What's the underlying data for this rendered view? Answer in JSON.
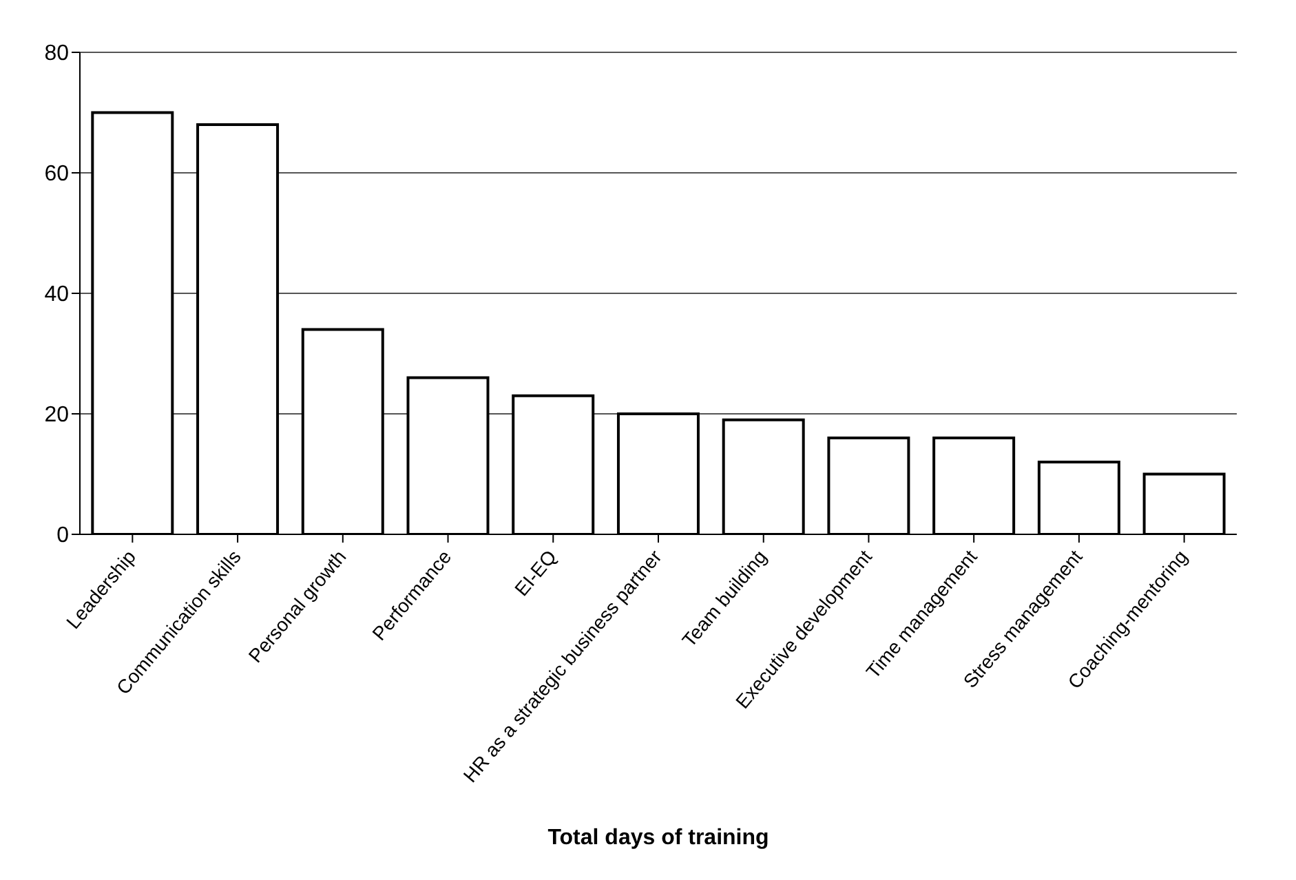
{
  "chart_data": {
    "type": "bar",
    "xlabel": "Total days of training",
    "categories": [
      "Leadership",
      "Communication skills",
      "Personal growth",
      "Performance",
      "EI-EQ",
      "HR as a strategic business partner",
      "Team building",
      "Executive development",
      "Time management",
      "Stress management",
      "Coaching-mentoring"
    ],
    "values": [
      70,
      68,
      34,
      26,
      23,
      20,
      19,
      16,
      16,
      12,
      10
    ],
    "color": "#ffffff",
    "ylim": [
      0,
      80
    ],
    "yticks": [
      0,
      20,
      40,
      60,
      80
    ],
    "grid": "y"
  }
}
